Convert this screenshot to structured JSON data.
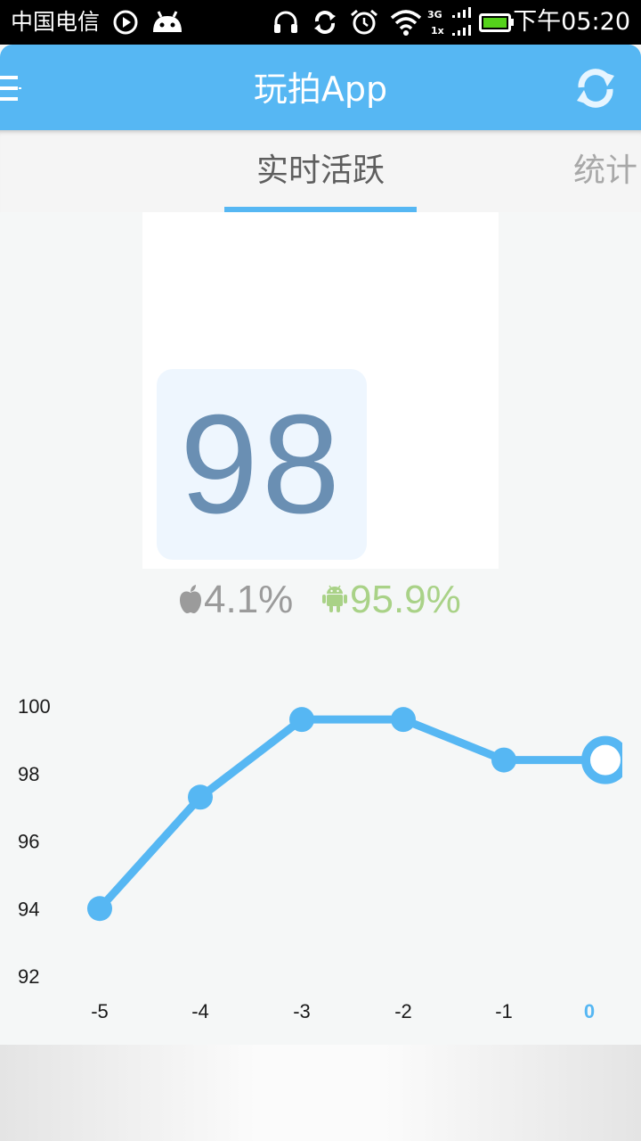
{
  "status_bar": {
    "carrier": "中国电信",
    "time": "下午05:20",
    "network_label_top": "3G",
    "network_label_bottom": "1x",
    "icons": [
      "play-icon",
      "android-notification-icon",
      "headset-icon",
      "sync-icon",
      "alarm-icon",
      "wifi-icon",
      "signal-icon",
      "battery-icon"
    ]
  },
  "app_bar": {
    "title": "玩拍App",
    "menu_icon": "menu-icon",
    "refresh_icon": "refresh-icon",
    "color": "#56b7f3"
  },
  "tabs": [
    {
      "label": "实时活跃",
      "active": true
    },
    {
      "label": "统计",
      "active": false
    }
  ],
  "active_count": "98",
  "platform_share": {
    "ios": {
      "icon": "apple-icon",
      "value": "4.1%",
      "color": "#9b9b9b"
    },
    "android": {
      "icon": "android-icon",
      "value": "95.9%",
      "color": "#a9d287"
    }
  },
  "chart_data": {
    "type": "line",
    "x": [
      -5,
      -4,
      -3,
      -2,
      -1,
      0
    ],
    "y": [
      94,
      97.3,
      99.6,
      99.6,
      98.4,
      98.4
    ],
    "x_tick_labels": [
      "-5",
      "-4",
      "-3",
      "-2",
      "-1",
      "0"
    ],
    "y_tick_labels": [
      "100",
      "98",
      "96",
      "94",
      "92"
    ],
    "ylim": [
      92,
      100
    ],
    "highlighted_x": 0,
    "grid": false,
    "line_color": "#56b7f3",
    "highlight_color": "#56b7f3"
  }
}
